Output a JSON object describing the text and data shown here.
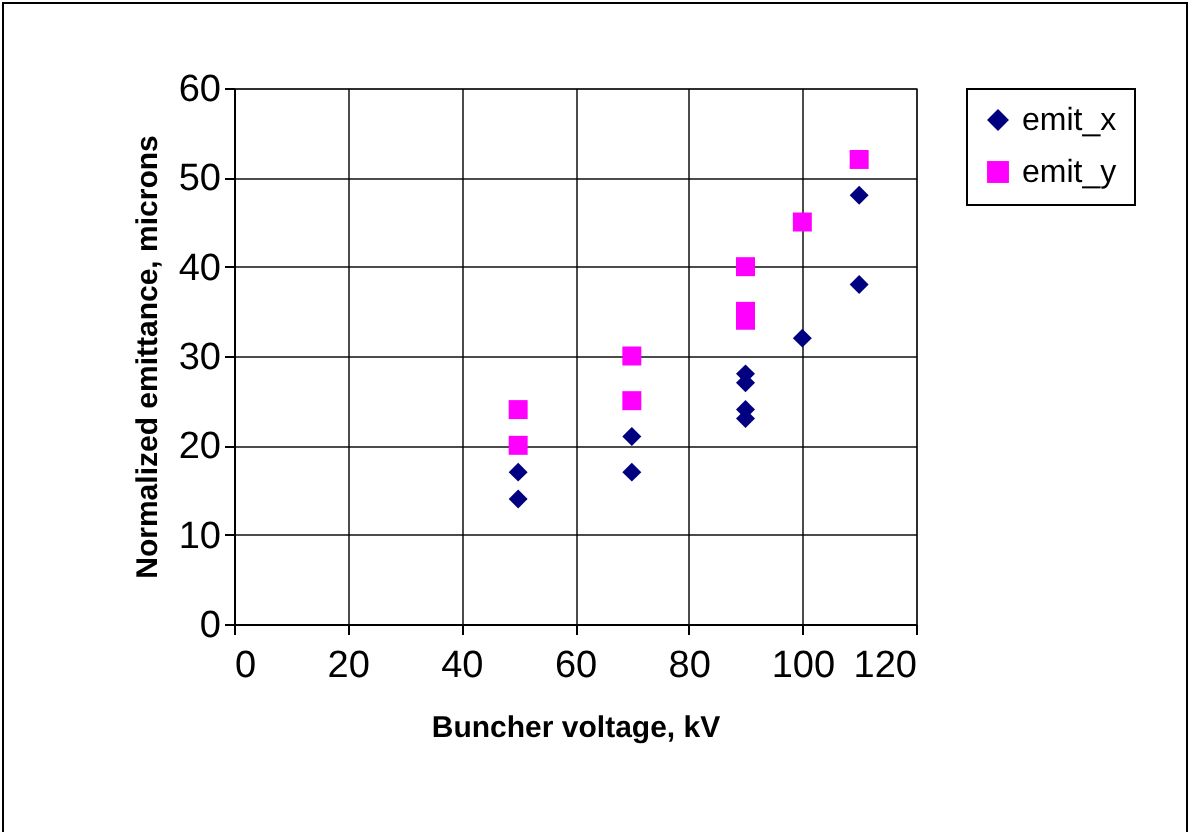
{
  "chart_data": {
    "type": "scatter",
    "xlabel": "Buncher voltage, kV",
    "ylabel": "Normalized emittance, microns",
    "xlim": [
      0,
      120
    ],
    "xticks": [
      0,
      20,
      40,
      60,
      80,
      100,
      120
    ],
    "ylim": [
      0,
      60
    ],
    "yticks": [
      0,
      10,
      20,
      30,
      40,
      50,
      60
    ],
    "grid": true,
    "legend": "right",
    "series": [
      {
        "name": "emit_x",
        "color": "#000080",
        "marker": "diamond",
        "x": [
          50,
          50,
          70,
          70,
          90,
          90,
          90,
          90,
          100,
          110,
          110
        ],
        "values": [
          17,
          14,
          21,
          17,
          28,
          27,
          24,
          23,
          32,
          48,
          38
        ]
      },
      {
        "name": "emit_y",
        "color": "#ff00ff",
        "marker": "square",
        "x": [
          50,
          50,
          70,
          70,
          90,
          90,
          90,
          100,
          110
        ],
        "values": [
          24,
          20,
          30,
          25,
          40,
          35,
          34,
          45,
          52
        ]
      }
    ]
  }
}
